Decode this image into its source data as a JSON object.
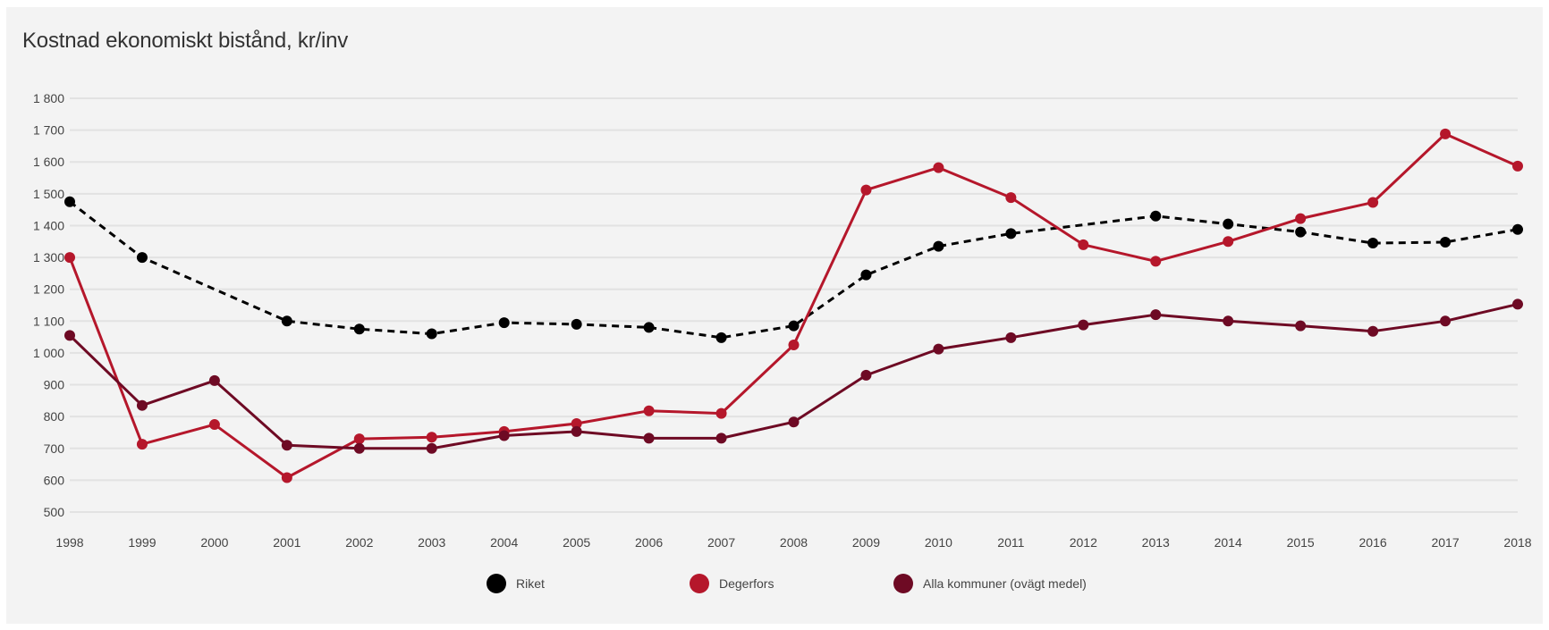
{
  "chart_data": {
    "type": "line",
    "title": "Kostnad ekonomiskt bistånd, kr/inv",
    "xlabel": "",
    "ylabel": "",
    "x": [
      "1998",
      "1999",
      "2000",
      "2001",
      "2002",
      "2003",
      "2004",
      "2005",
      "2006",
      "2007",
      "2008",
      "2009",
      "2010",
      "2011",
      "2012",
      "2013",
      "2014",
      "2015",
      "2016",
      "2017",
      "2018"
    ],
    "ylim": [
      500,
      1800
    ],
    "yticks": [
      500,
      600,
      700,
      800,
      900,
      1000,
      1100,
      1200,
      1300,
      1400,
      1500,
      1600,
      1700,
      1800
    ],
    "ytick_labels": [
      "500",
      "600",
      "700",
      "800",
      "900",
      "1 000",
      "1 100",
      "1 200",
      "1 300",
      "1 400",
      "1 500",
      "1 600",
      "1 700",
      "1 800"
    ],
    "grid": true,
    "legend_position": "bottom",
    "series": [
      {
        "name": "Riket",
        "color": "#000000",
        "dashed": true,
        "values": [
          1475,
          1300,
          null,
          1100,
          1075,
          1060,
          1095,
          1090,
          1080,
          1048,
          1085,
          1245,
          1335,
          1375,
          null,
          1430,
          1405,
          1380,
          1345,
          1348,
          1388
        ]
      },
      {
        "name": "Degerfors",
        "color": "#b5172b",
        "dashed": false,
        "values": [
          1300,
          713,
          775,
          608,
          730,
          735,
          753,
          778,
          818,
          810,
          1025,
          1512,
          1582,
          1488,
          1340,
          1288,
          1350,
          1422,
          1473,
          1688,
          1587
        ]
      },
      {
        "name": "Alla kommuner (ovägt medel)",
        "color": "#6e0a24",
        "dashed": false,
        "values": [
          1055,
          835,
          913,
          710,
          700,
          700,
          740,
          753,
          732,
          732,
          783,
          930,
          1012,
          1048,
          1088,
          1120,
          1100,
          1085,
          1068,
          1100,
          1153
        ]
      }
    ]
  }
}
